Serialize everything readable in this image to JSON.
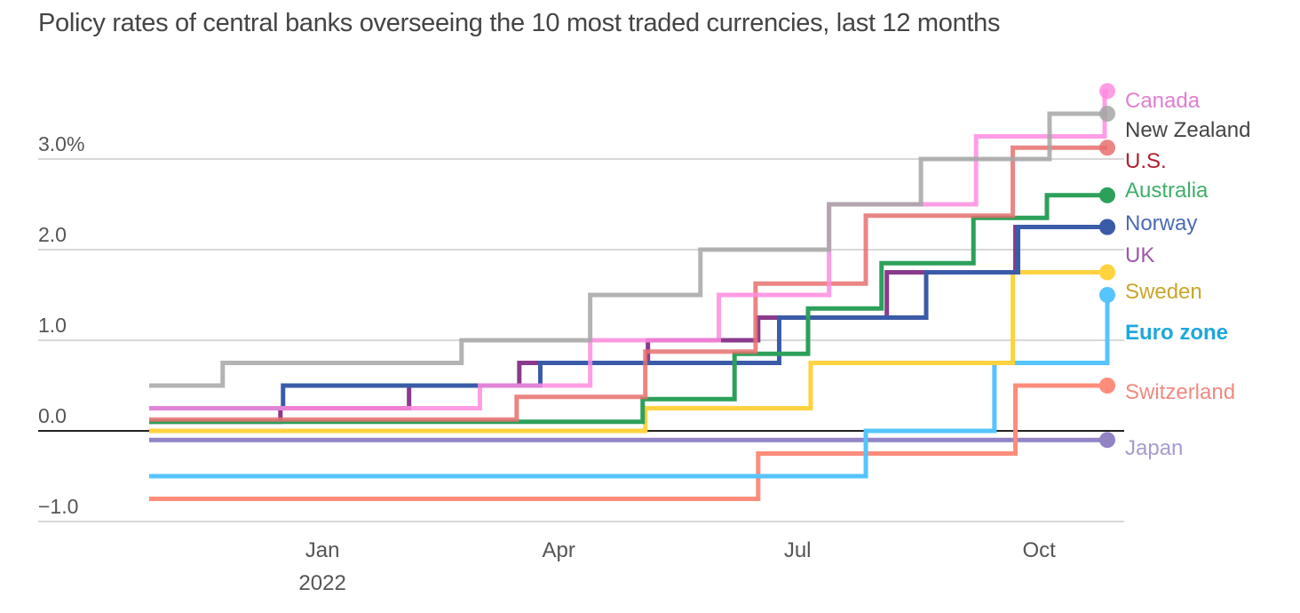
{
  "chart_data": {
    "type": "line",
    "step": true,
    "title": "Policy rates of central banks overseeing the 10 most traded currencies, last 12 months",
    "xlabel": "",
    "ylabel": "",
    "y_unit": "%",
    "ylim": [
      -1.0,
      3.8
    ],
    "yticks": [
      {
        "value": 3.0,
        "label": "3.0%"
      },
      {
        "value": 2.0,
        "label": "2.0"
      },
      {
        "value": 1.0,
        "label": "1.0"
      },
      {
        "value": 0.0,
        "label": "0.0"
      },
      {
        "value": -1.0,
        "label": "−1.0"
      }
    ],
    "x_range": [
      "2021-10-27",
      "2022-10-27"
    ],
    "xticks": [
      {
        "date": "2022-01-01",
        "label": "Jan",
        "sublabel": "2022"
      },
      {
        "date": "2022-04-01",
        "label": "Apr",
        "sublabel": ""
      },
      {
        "date": "2022-07-01",
        "label": "Jul",
        "sublabel": ""
      },
      {
        "date": "2022-10-01",
        "label": "Oct",
        "sublabel": ""
      }
    ],
    "grid": true,
    "legend": "direct-labels-right",
    "series": [
      {
        "name": "New Zealand",
        "color": "#a6a6a6",
        "label_color": "#444444",
        "steps": [
          [
            "2021-10-27",
            0.5
          ],
          [
            "2021-11-24",
            0.75
          ],
          [
            "2022-02-23",
            1.0
          ],
          [
            "2022-04-13",
            1.5
          ],
          [
            "2022-05-25",
            2.0
          ],
          [
            "2022-07-13",
            2.5
          ],
          [
            "2022-08-17",
            3.0
          ],
          [
            "2022-10-05",
            3.5
          ]
        ]
      },
      {
        "name": "Canada",
        "color": "#ff8ce0",
        "label_color": "#e07fcf",
        "steps": [
          [
            "2021-10-27",
            0.25
          ],
          [
            "2022-03-02",
            0.5
          ],
          [
            "2022-04-13",
            1.0
          ],
          [
            "2022-06-01",
            1.5
          ],
          [
            "2022-07-13",
            2.5
          ],
          [
            "2022-09-07",
            3.25
          ],
          [
            "2022-10-26",
            3.75
          ]
        ]
      },
      {
        "name": "U.S.",
        "color": "#e8706e",
        "label_color": "#b3202c",
        "steps": [
          [
            "2021-10-27",
            0.125
          ],
          [
            "2022-03-16",
            0.375
          ],
          [
            "2022-05-04",
            0.875
          ],
          [
            "2022-06-15",
            1.625
          ],
          [
            "2022-07-27",
            2.375
          ],
          [
            "2022-09-21",
            3.125
          ]
        ]
      },
      {
        "name": "Australia",
        "color": "#2ca05a",
        "label_color": "#3fae6a",
        "steps": [
          [
            "2021-10-27",
            0.1
          ],
          [
            "2022-05-03",
            0.35
          ],
          [
            "2022-06-07",
            0.85
          ],
          [
            "2022-07-05",
            1.35
          ],
          [
            "2022-08-02",
            1.85
          ],
          [
            "2022-09-06",
            2.35
          ],
          [
            "2022-10-04",
            2.6
          ]
        ]
      },
      {
        "name": "Norway",
        "color": "#3a5ba8",
        "label_color": "#4a6bb5",
        "steps": [
          [
            "2021-10-27",
            0.25
          ],
          [
            "2021-12-17",
            0.5
          ],
          [
            "2022-03-25",
            0.75
          ],
          [
            "2022-06-24",
            1.25
          ],
          [
            "2022-08-19",
            1.75
          ],
          [
            "2022-09-23",
            2.25
          ]
        ]
      },
      {
        "name": "UK",
        "color": "#8a3a8c",
        "label_color": "#9a5aa6",
        "steps": [
          [
            "2021-10-27",
            0.1
          ],
          [
            "2021-12-16",
            0.25
          ],
          [
            "2022-02-03",
            0.5
          ],
          [
            "2022-03-17",
            0.75
          ],
          [
            "2022-05-05",
            1.0
          ],
          [
            "2022-06-16",
            1.25
          ],
          [
            "2022-08-04",
            1.75
          ],
          [
            "2022-09-22",
            2.25
          ]
        ]
      },
      {
        "name": "Sweden",
        "color": "#ffd23f",
        "label_color": "#c9a62b",
        "steps": [
          [
            "2021-10-27",
            0.0
          ],
          [
            "2022-05-04",
            0.25
          ],
          [
            "2022-07-06",
            0.75
          ],
          [
            "2022-09-21",
            1.75
          ]
        ]
      },
      {
        "name": "Euro zone",
        "color": "#56c4ff",
        "label_color": "#1ea7dd",
        "bold": true,
        "steps": [
          [
            "2021-10-27",
            -0.5
          ],
          [
            "2022-07-27",
            0.0
          ],
          [
            "2022-09-14",
            0.75
          ],
          [
            "2022-10-27",
            1.5
          ]
        ]
      },
      {
        "name": "Switzerland",
        "color": "#ff8c7a",
        "label_color": "#f08a80",
        "steps": [
          [
            "2021-10-27",
            -0.75
          ],
          [
            "2022-06-16",
            -0.25
          ],
          [
            "2022-09-22",
            0.5
          ]
        ]
      },
      {
        "name": "Japan",
        "color": "#9183c6",
        "label_color": "#a79bd1",
        "steps": [
          [
            "2021-10-27",
            -0.1
          ]
        ]
      }
    ]
  }
}
